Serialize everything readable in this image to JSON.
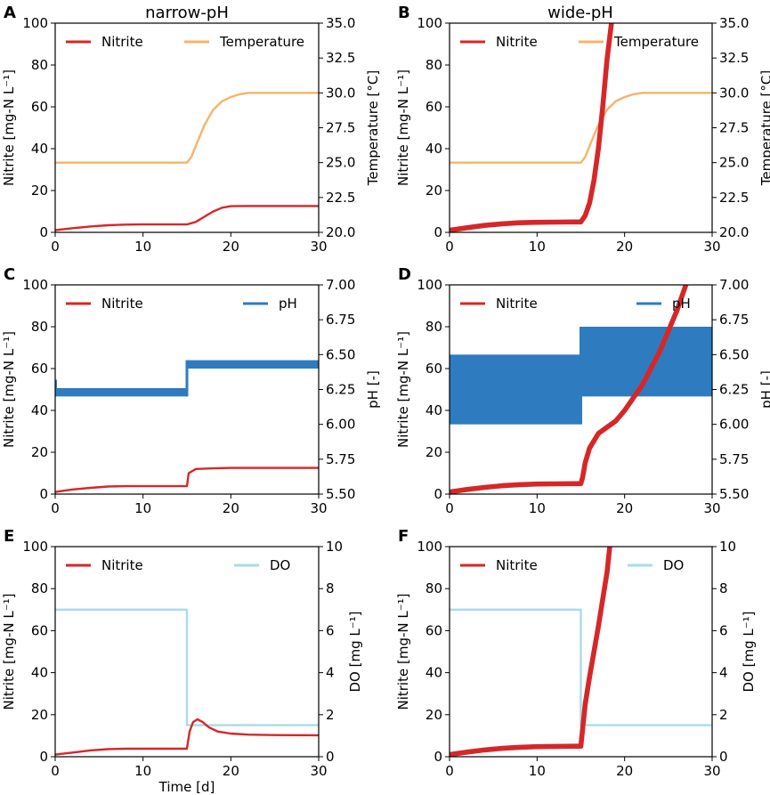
{
  "column_titles": [
    "narrow-pH",
    "wide-pH"
  ],
  "colors": {
    "nitrite": "#d62728",
    "temperature": "#f8b26a",
    "ph": "#2f7bbf",
    "do": "#a8dce8"
  },
  "chart_data": [
    {
      "panel": "A",
      "type": "line",
      "xlabel": "",
      "xlim": [
        0,
        30
      ],
      "xticks": [
        0,
        10,
        20,
        30
      ],
      "ylabel": "Nitrite [mg-N L⁻¹]",
      "ylim": [
        0,
        100
      ],
      "yticks": [
        0,
        20,
        40,
        60,
        80,
        100
      ],
      "y2label": "Temperature [°C]",
      "y2lim": [
        20,
        35
      ],
      "y2ticks": [
        "20.0",
        "22.5",
        "25.0",
        "27.5",
        "30.0",
        "32.5",
        "35.0"
      ],
      "legend": [
        "Nitrite",
        "Temperature"
      ],
      "series": [
        {
          "name": "Nitrite",
          "axis": "left",
          "x": [
            0,
            2,
            4,
            6,
            8,
            10,
            12,
            14,
            15,
            16,
            17,
            18,
            19,
            20,
            22,
            25,
            30
          ],
          "y": [
            1,
            2,
            2.8,
            3.4,
            3.7,
            3.8,
            3.8,
            3.8,
            3.8,
            5,
            7.5,
            10,
            11.8,
            12.5,
            12.6,
            12.6,
            12.6
          ]
        },
        {
          "name": "Temperature",
          "axis": "right",
          "x": [
            0,
            15,
            15.5,
            16,
            17,
            18,
            19,
            20,
            21,
            22,
            23,
            25,
            30
          ],
          "y": [
            25,
            25,
            25.4,
            26.2,
            27.7,
            28.8,
            29.4,
            29.7,
            29.9,
            30,
            30,
            30,
            30
          ]
        }
      ]
    },
    {
      "panel": "B",
      "type": "line",
      "xlabel": "",
      "xlim": [
        0,
        30
      ],
      "xticks": [
        0,
        10,
        20,
        30
      ],
      "ylabel": "Nitrite [mg-N L⁻¹]",
      "ylim": [
        0,
        100
      ],
      "yticks": [
        0,
        20,
        40,
        60,
        80,
        100
      ],
      "y2label": "Temperature [°C]",
      "y2lim": [
        20,
        35
      ],
      "y2ticks": [
        "20.0",
        "22.5",
        "25.0",
        "27.5",
        "30.0",
        "32.5",
        "35.0"
      ],
      "legend": [
        "Nitrite",
        "Temperature"
      ],
      "series": [
        {
          "name": "Nitrite",
          "axis": "left",
          "x": [
            0,
            2,
            4,
            6,
            8,
            10,
            12,
            14,
            15,
            15.5,
            16,
            16.5,
            17,
            17.5,
            18,
            18.5
          ],
          "y": [
            1,
            2.2,
            3.3,
            4.1,
            4.6,
            4.8,
            4.9,
            5,
            5,
            8,
            14,
            25,
            40,
            60,
            83,
            100
          ],
          "band": 1.5
        },
        {
          "name": "Temperature",
          "axis": "right",
          "x": [
            0,
            15,
            15.5,
            16,
            17,
            18,
            19,
            20,
            21,
            22,
            23,
            25,
            30
          ],
          "y": [
            25,
            25,
            25.4,
            26.2,
            27.7,
            28.8,
            29.4,
            29.7,
            29.9,
            30,
            30,
            30,
            30
          ]
        }
      ]
    },
    {
      "panel": "C",
      "type": "line",
      "xlabel": "",
      "xlim": [
        0,
        30
      ],
      "xticks": [
        0,
        10,
        20,
        30
      ],
      "ylabel": "Nitrite [mg-N L⁻¹]",
      "ylim": [
        0,
        100
      ],
      "yticks": [
        0,
        20,
        40,
        60,
        80,
        100
      ],
      "y2label": "pH [-]",
      "y2lim": [
        5.5,
        7.0
      ],
      "y2ticks": [
        "5.50",
        "5.75",
        "6.00",
        "6.25",
        "6.50",
        "6.75",
        "7.00"
      ],
      "legend": [
        "Nitrite",
        "pH"
      ],
      "series": [
        {
          "name": "Nitrite",
          "axis": "left",
          "x": [
            0,
            2,
            4,
            6,
            8,
            10,
            12,
            14,
            15,
            15.2,
            16,
            18,
            20,
            25,
            30
          ],
          "y": [
            1,
            2.2,
            3,
            3.6,
            3.8,
            3.8,
            3.8,
            3.8,
            3.8,
            10,
            12,
            12.3,
            12.5,
            12.5,
            12.5
          ]
        },
        {
          "name": "pH",
          "axis": "right",
          "type": "band",
          "x": [
            0,
            15,
            15,
            30
          ],
          "low": [
            6.2,
            6.2,
            6.4,
            6.4
          ],
          "high": [
            6.26,
            6.26,
            6.46,
            6.46
          ],
          "spike_at": 0,
          "spike_high": 6.32
        }
      ]
    },
    {
      "panel": "D",
      "type": "line",
      "xlabel": "",
      "xlim": [
        0,
        30
      ],
      "xticks": [
        0,
        10,
        20,
        30
      ],
      "ylabel": "Nitrite [mg-N L⁻¹]",
      "ylim": [
        0,
        100
      ],
      "yticks": [
        0,
        20,
        40,
        60,
        80,
        100
      ],
      "y2label": "pH [-]",
      "y2lim": [
        5.5,
        7.0
      ],
      "y2ticks": [
        "5.50",
        "5.75",
        "6.00",
        "6.25",
        "6.50",
        "6.75",
        "7.00"
      ],
      "legend": [
        "Nitrite",
        "pH"
      ],
      "series": [
        {
          "name": "Nitrite",
          "axis": "left",
          "x": [
            0,
            2,
            4,
            6,
            8,
            10,
            12,
            14,
            15,
            15.2,
            15.5,
            16,
            17,
            18,
            19,
            20,
            22,
            24,
            26,
            27
          ],
          "y": [
            1,
            2.2,
            3.2,
            4,
            4.5,
            4.8,
            4.9,
            5,
            5,
            8,
            15,
            22,
            29,
            32,
            35,
            40,
            52,
            68,
            88,
            100
          ],
          "band": 1.5
        },
        {
          "name": "pH",
          "axis": "right",
          "type": "band",
          "x": [
            0,
            15,
            15,
            30
          ],
          "low": [
            6.0,
            6.0,
            6.2,
            6.2
          ],
          "high": [
            6.5,
            6.5,
            6.7,
            6.7
          ]
        }
      ]
    },
    {
      "panel": "E",
      "type": "line",
      "xlabel": "Time [d]",
      "xlim": [
        0,
        30
      ],
      "xticks": [
        0,
        10,
        20,
        30
      ],
      "ylabel": "Nitrite [mg-N L⁻¹]",
      "ylim": [
        0,
        100
      ],
      "yticks": [
        0,
        20,
        40,
        60,
        80,
        100
      ],
      "y2label": "DO [mg L⁻¹]",
      "y2lim": [
        0,
        10
      ],
      "y2ticks": [
        "0",
        "2",
        "4",
        "6",
        "8",
        "10"
      ],
      "legend": [
        "Nitrite",
        "DO"
      ],
      "series": [
        {
          "name": "Nitrite",
          "axis": "left",
          "x": [
            0,
            2,
            4,
            6,
            8,
            10,
            12,
            14,
            15,
            15.3,
            15.7,
            16.2,
            16.8,
            17.5,
            18.5,
            20,
            22,
            25,
            30
          ],
          "y": [
            1,
            2,
            3,
            3.6,
            3.8,
            3.8,
            3.8,
            3.8,
            3.8,
            12,
            16.5,
            17.8,
            16.5,
            14,
            12,
            11,
            10.5,
            10.3,
            10.2
          ]
        },
        {
          "name": "DO",
          "axis": "right",
          "x": [
            0,
            15,
            15,
            30
          ],
          "y": [
            7,
            7,
            1.5,
            1.5
          ]
        }
      ]
    },
    {
      "panel": "F",
      "type": "line",
      "xlabel": "",
      "xlim": [
        0,
        30
      ],
      "xticks": [
        0,
        10,
        20,
        30
      ],
      "ylabel": "Nitrite [mg-N L⁻¹]",
      "ylim": [
        0,
        100
      ],
      "yticks": [
        0,
        20,
        40,
        60,
        80,
        100
      ],
      "y2label": "DO [mg L⁻¹]",
      "y2lim": [
        0,
        10
      ],
      "y2ticks": [
        "0",
        "2",
        "4",
        "6",
        "8",
        "10"
      ],
      "legend": [
        "Nitrite",
        "DO"
      ],
      "series": [
        {
          "name": "Nitrite",
          "axis": "left",
          "x": [
            0,
            2,
            4,
            6,
            8,
            10,
            12,
            14,
            15,
            15.5,
            16,
            17,
            18,
            18.3
          ],
          "y": [
            1,
            2.2,
            3.2,
            4,
            4.5,
            4.8,
            4.9,
            5,
            5,
            25,
            38,
            62,
            88,
            100
          ],
          "band": 1.5
        },
        {
          "name": "DO",
          "axis": "right",
          "x": [
            0,
            15,
            15,
            30
          ],
          "y": [
            7,
            7,
            1.5,
            1.5
          ]
        }
      ]
    }
  ]
}
